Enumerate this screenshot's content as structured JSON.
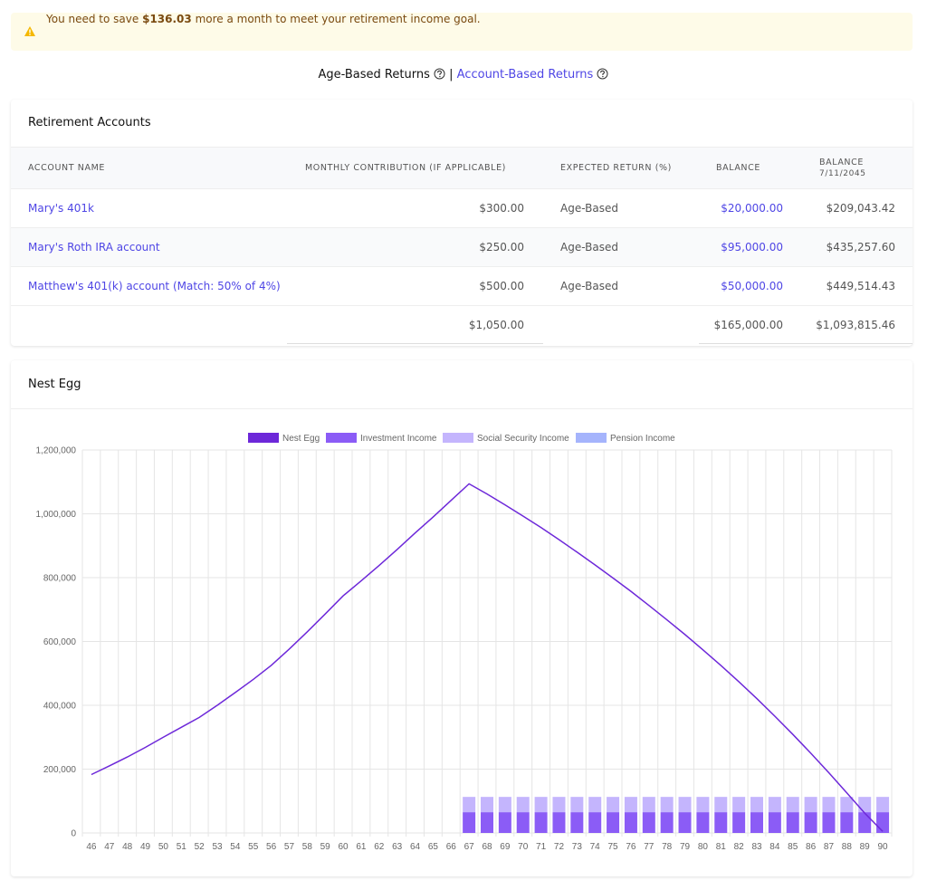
{
  "alert": {
    "prefix": "You need to save",
    "amount": "$136.03",
    "suffix": "more a month to meet your retirement income goal."
  },
  "toggle": {
    "active": "Age-Based Returns",
    "separator": "|",
    "inactive": "Account-Based Returns"
  },
  "accounts": {
    "title": "Retirement Accounts",
    "columns": [
      {
        "label": "ACCOUNT NAME"
      },
      {
        "label": "MONTHLY CONTRIBUTION (IF APPLICABLE)"
      },
      {
        "label": "EXPECTED RETURN (%)"
      },
      {
        "label": "BALANCE"
      },
      {
        "label": "BALANCE",
        "sublabel": "7/11/2045"
      }
    ],
    "rows": [
      {
        "name": "Mary's 401k",
        "contribution": "$300.00",
        "return": "Age-Based",
        "balance": "$20,000.00",
        "future_balance": "$209,043.42"
      },
      {
        "name": "Mary's Roth IRA account",
        "contribution": "$250.00",
        "return": "Age-Based",
        "balance": "$95,000.00",
        "future_balance": "$435,257.60"
      },
      {
        "name": "Matthew's 401(k) account (Match: 50% of 4%)",
        "contribution": "$500.00",
        "return": "Age-Based",
        "balance": "$50,000.00",
        "future_balance": "$449,514.43"
      }
    ],
    "totals": {
      "contribution": "$1,050.00",
      "balance": "$165,000.00",
      "future_balance": "$1,093,815.46"
    }
  },
  "nest_egg": {
    "title": "Nest Egg",
    "chart": {
      "type": "bar-line",
      "categories": [
        46,
        47,
        48,
        49,
        50,
        51,
        52,
        53,
        54,
        55,
        56,
        57,
        58,
        59,
        60,
        61,
        62,
        63,
        64,
        65,
        66,
        67,
        68,
        69,
        70,
        71,
        72,
        73,
        74,
        75,
        76,
        77,
        78,
        79,
        80,
        81,
        82,
        83,
        84,
        85,
        86,
        87,
        88,
        89,
        90
      ],
      "series": [
        {
          "name": "Nest Egg",
          "color": "#6d28d9",
          "kind": "line",
          "values": [
            183000,
            210000,
            238000,
            268000,
            300000,
            331000,
            362000,
            400000,
            440000,
            481000,
            525000,
            576000,
            630000,
            686000,
            743000,
            790000,
            838000,
            888000,
            940000,
            990000,
            1042000,
            1094000,
            1062000,
            1028000,
            993000,
            957000,
            919000,
            880000,
            840000,
            799000,
            757000,
            713000,
            668000,
            622000,
            574000,
            525000,
            474000,
            421000,
            366000,
            309000,
            250000,
            189000,
            126000,
            62000,
            5000
          ]
        },
        {
          "name": "Investment Income",
          "color": "#8b5cf6",
          "kind": "bar",
          "values": [
            null,
            null,
            null,
            null,
            null,
            null,
            null,
            null,
            null,
            null,
            null,
            null,
            null,
            null,
            null,
            null,
            null,
            null,
            null,
            null,
            null,
            65000,
            65000,
            65000,
            65000,
            65000,
            65000,
            65000,
            65000,
            65000,
            65000,
            65000,
            65000,
            65000,
            65000,
            65000,
            65000,
            65000,
            65000,
            65000,
            65000,
            65000,
            65000,
            65000,
            65000
          ]
        },
        {
          "name": "Social Security Income",
          "color": "#c4b5fd",
          "kind": "bar",
          "values": [
            null,
            null,
            null,
            null,
            null,
            null,
            null,
            null,
            null,
            null,
            null,
            null,
            null,
            null,
            null,
            null,
            null,
            null,
            null,
            null,
            null,
            48000,
            48000,
            48000,
            48000,
            48000,
            48000,
            48000,
            48000,
            48000,
            48000,
            48000,
            48000,
            48000,
            48000,
            48000,
            48000,
            48000,
            48000,
            48000,
            48000,
            48000,
            48000,
            48000,
            48000
          ]
        },
        {
          "name": "Pension Income",
          "color": "#a5b4fc",
          "kind": "bar",
          "values": [
            null,
            null,
            null,
            null,
            null,
            null,
            null,
            null,
            null,
            null,
            null,
            null,
            null,
            null,
            null,
            null,
            null,
            null,
            null,
            null,
            null,
            0,
            0,
            0,
            0,
            0,
            0,
            0,
            0,
            0,
            0,
            0,
            0,
            0,
            0,
            0,
            0,
            0,
            0,
            0,
            0,
            0,
            0,
            0,
            0
          ]
        }
      ],
      "ylim": [
        0,
        1200000
      ],
      "yticks": [
        0,
        {
          "value": 200000,
          "label": "200,000"
        },
        {
          "value": 400000,
          "label": "400,000"
        },
        {
          "value": 600000,
          "label": "600,000"
        },
        {
          "value": 800000,
          "label": "800,000"
        },
        {
          "value": 1000000,
          "label": "1,000,000"
        },
        {
          "value": 1200000,
          "label": "1,200,000"
        }
      ],
      "grid": true,
      "legend": "top"
    }
  }
}
